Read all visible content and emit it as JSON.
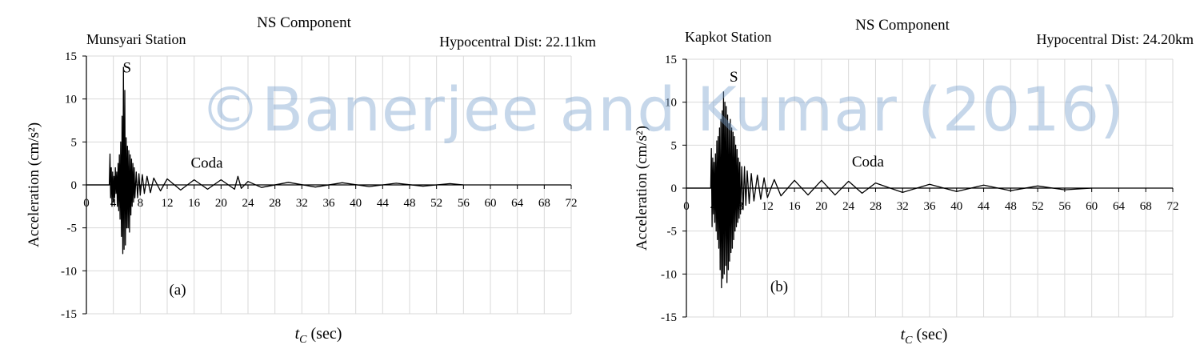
{
  "watermark": "©Banerjee and Kumar (2016)",
  "colors": {
    "signal": "#000000",
    "grid": "#d9d9d9",
    "axis": "#000000",
    "watermark": "#7aa0cd"
  },
  "chart_data": [
    {
      "type": "line",
      "title": "NS Component",
      "station": "Munsyari Station",
      "distance": "Hypocentral Dist: 22.11km",
      "panel": "(a)",
      "ylabel": "Acceleration  (cm/s²)",
      "xlabel_var": "t",
      "xlabel_sub": "C",
      "xlabel_unit": " (sec)",
      "xlim": [
        0,
        72
      ],
      "ylim": [
        -15,
        15
      ],
      "xticks": [
        0,
        4,
        8,
        12,
        16,
        20,
        24,
        28,
        32,
        36,
        40,
        44,
        48,
        52,
        56,
        60,
        64,
        68,
        72
      ],
      "yticks": [
        -15,
        -10,
        -5,
        0,
        5,
        10,
        15
      ],
      "grid": true,
      "annotations": [
        {
          "text": "S",
          "x": 5.4,
          "y": 13.1
        },
        {
          "text": "Coda",
          "x": 15.5,
          "y": 2.0
        }
      ],
      "series": [
        {
          "x": [
            0,
            3.4,
            3.5,
            3.6,
            3.7,
            3.8,
            3.9,
            4.0,
            4.1,
            4.2,
            4.3,
            4.4,
            4.5,
            4.6,
            4.7,
            4.8,
            4.9,
            5.0,
            5.1,
            5.2,
            5.3,
            5.4,
            5.5,
            5.6,
            5.7,
            5.8,
            5.9,
            6.0,
            6.1,
            6.2,
            6.3,
            6.4,
            6.5,
            6.6,
            6.7,
            6.8,
            6.9,
            7.0,
            7.1,
            7.2,
            7.4,
            7.6,
            7.8,
            8.0,
            8.3,
            8.6,
            9.0,
            9.5,
            10.0,
            11.0,
            12.0,
            14.0,
            16.0,
            18.0,
            20.0,
            22.0,
            22.5,
            23.0,
            24.0,
            26.0,
            30.0,
            34.0,
            38.0,
            42.0,
            46.0,
            50.0,
            54.0,
            56.0
          ],
          "y": [
            0,
            0,
            3.6,
            -1.5,
            2.0,
            -2.5,
            1.5,
            -2.0,
            1.0,
            -1.5,
            2.0,
            -1.0,
            1.5,
            -2.5,
            2.5,
            -3.0,
            3.5,
            -4.0,
            5.0,
            -6.0,
            8.0,
            -8.0,
            13.7,
            -7.5,
            11.0,
            -7.0,
            5.5,
            -5.0,
            4.5,
            -5.0,
            4.0,
            -5.5,
            3.5,
            -3.5,
            3.0,
            -2.5,
            2.5,
            -2.0,
            2.0,
            -1.5,
            1.5,
            -1.5,
            1.3,
            -1.2,
            1.2,
            -1.0,
            1.0,
            -0.9,
            0.8,
            -0.7,
            0.7,
            -0.6,
            0.6,
            -0.5,
            0.6,
            -0.5,
            1.0,
            -0.4,
            0.4,
            -0.3,
            0.3,
            -0.25,
            0.25,
            -0.2,
            0.2,
            -0.15,
            0.15,
            0
          ]
        }
      ]
    },
    {
      "type": "line",
      "title": "NS Component",
      "station": "Kapkot Station",
      "distance": "Hypocentral Dist: 24.20km",
      "panel": "(b)",
      "ylabel": "Acceleration  (cm/s²)",
      "xlabel_var": "t",
      "xlabel_sub": "C",
      "xlabel_unit": " (sec)",
      "xlim": [
        0,
        72
      ],
      "ylim": [
        -15,
        15
      ],
      "xticks": [
        0,
        4,
        8,
        12,
        16,
        20,
        24,
        28,
        32,
        36,
        40,
        44,
        48,
        52,
        56,
        60,
        64,
        68,
        72
      ],
      "yticks": [
        -15,
        -10,
        -5,
        0,
        5,
        10,
        15
      ],
      "grid": true,
      "annotations": [
        {
          "text": "S",
          "x": 6.4,
          "y": 12.4
        },
        {
          "text": "Coda",
          "x": 24.5,
          "y": 2.5
        }
      ],
      "series": [
        {
          "x": [
            0,
            3.6,
            3.7,
            3.8,
            3.9,
            4.0,
            4.1,
            4.2,
            4.3,
            4.4,
            4.5,
            4.6,
            4.7,
            4.8,
            4.9,
            5.0,
            5.1,
            5.2,
            5.3,
            5.4,
            5.5,
            5.6,
            5.7,
            5.8,
            5.9,
            6.0,
            6.1,
            6.2,
            6.3,
            6.4,
            6.5,
            6.6,
            6.7,
            6.8,
            6.9,
            7.0,
            7.1,
            7.2,
            7.3,
            7.4,
            7.5,
            7.6,
            7.7,
            7.8,
            7.9,
            8.0,
            8.2,
            8.4,
            8.6,
            8.8,
            9.0,
            9.3,
            9.6,
            10.0,
            10.5,
            11.0,
            11.5,
            12.0,
            13.0,
            14.0,
            16.0,
            18.0,
            20.0,
            22.0,
            24.0,
            26.0,
            28.0,
            32.0,
            36.0,
            40.0,
            44.0,
            48.0,
            52.0,
            56.0,
            60.0
          ],
          "y": [
            0,
            0,
            4.6,
            -4.5,
            3.5,
            -3.0,
            3.0,
            -4.0,
            4.0,
            -5.0,
            5.5,
            -6.0,
            6.0,
            -7.0,
            7.0,
            -9.5,
            8.0,
            -11.6,
            9.0,
            -10.5,
            11.2,
            -10.0,
            10.0,
            -9.0,
            9.5,
            -11.0,
            8.5,
            -9.5,
            7.5,
            -8.5,
            8.0,
            -7.5,
            7.0,
            -7.0,
            6.5,
            -6.0,
            6.0,
            -5.0,
            5.0,
            -4.5,
            4.5,
            -4.0,
            3.5,
            -3.5,
            3.0,
            -3.0,
            2.5,
            -2.5,
            2.5,
            -2.0,
            2.0,
            -1.8,
            1.7,
            -1.5,
            1.5,
            -1.3,
            1.2,
            -1.1,
            1.0,
            -0.9,
            0.9,
            -0.8,
            0.9,
            -0.8,
            0.8,
            -0.6,
            0.6,
            -0.5,
            0.45,
            -0.4,
            0.35,
            -0.3,
            0.25,
            -0.2,
            0
          ]
        }
      ]
    }
  ]
}
